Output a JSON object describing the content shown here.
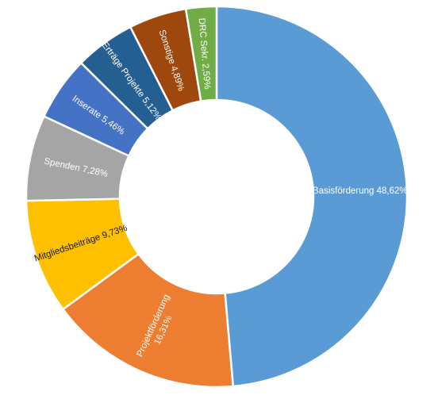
{
  "chart_data": {
    "type": "pie",
    "variant": "donut",
    "title": "",
    "legend": "none",
    "start_angle_deg": 0,
    "direction": "clockwise",
    "slices": [
      {
        "label": "Basisförderung",
        "value_text": "48,62%",
        "value": 48.62,
        "color": "#5B9BD5",
        "label_color": "#ffffff"
      },
      {
        "label": "Projektförderung",
        "value_text": "16,31%",
        "value": 16.31,
        "color": "#ED7D31",
        "label_color": "#ffffff"
      },
      {
        "label": "Mitgliedsbeiträge",
        "value_text": "9,73%",
        "value": 9.73,
        "color": "#FFC000",
        "label_color": "#1a1a1a"
      },
      {
        "label": "Spenden",
        "value_text": "7,28%",
        "value": 7.28,
        "color": "#A5A5A5",
        "label_color": "#ffffff"
      },
      {
        "label": "Inserate",
        "value_text": "5,46%",
        "value": 5.46,
        "color": "#4472C4",
        "label_color": "#ffffff"
      },
      {
        "label": "Erträge Projekte",
        "value_text": "5,12%",
        "value": 5.12,
        "color": "#255E91",
        "label_color": "#ffffff"
      },
      {
        "label": "Sonstige",
        "value_text": "4,89%",
        "value": 4.89,
        "color": "#9E480E",
        "label_color": "#ffffff"
      },
      {
        "label": "DRC Sekr.",
        "value_text": "2,59%",
        "value": 2.59,
        "color": "#70AD47",
        "label_color": "#ffffff"
      }
    ]
  }
}
